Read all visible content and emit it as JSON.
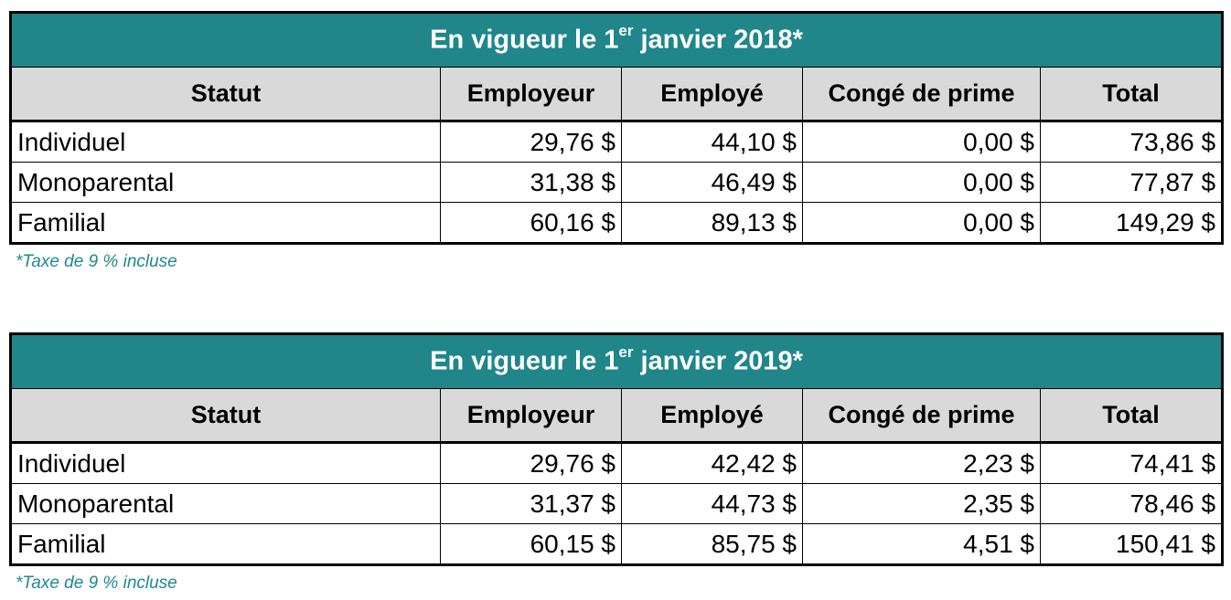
{
  "tables": [
    {
      "title_prefix": "En vigueur le 1",
      "title_sup": "er",
      "title_suffix": " janvier 2018*",
      "headers": [
        "Statut",
        "Employeur",
        "Employé",
        "Congé de prime",
        "Total"
      ],
      "rows": [
        {
          "statut": "Individuel",
          "employeur": "29,76 $",
          "employe": "44,10 $",
          "conge": "0,00 $",
          "total": "73,86 $"
        },
        {
          "statut": "Monoparental",
          "employeur": "31,38 $",
          "employe": "46,49 $",
          "conge": "0,00 $",
          "total": "77,87 $"
        },
        {
          "statut": "Familial",
          "employeur": "60,16 $",
          "employe": "89,13 $",
          "conge": "0,00 $",
          "total": "149,29 $"
        }
      ],
      "footnote": "*Taxe de 9 % incluse"
    },
    {
      "title_prefix": "En vigueur le 1",
      "title_sup": "er",
      "title_suffix": " janvier 2019*",
      "headers": [
        "Statut",
        "Employeur",
        "Employé",
        "Congé de prime",
        "Total"
      ],
      "rows": [
        {
          "statut": "Individuel",
          "employeur": "29,76 $",
          "employe": "42,42 $",
          "conge": "2,23 $",
          "total": "74,41 $"
        },
        {
          "statut": "Monoparental",
          "employeur": "31,37 $",
          "employe": "44,73 $",
          "conge": "2,35 $",
          "total": "78,46 $"
        },
        {
          "statut": "Familial",
          "employeur": "60,15 $",
          "employe": "85,75 $",
          "conge": "4,51 $",
          "total": "150,41 $"
        }
      ],
      "footnote": "*Taxe de 9 % incluse"
    }
  ],
  "colors": {
    "title_bg": "#20868a",
    "header_bg": "#d9d9d9",
    "footnote": "#1f8a8c"
  }
}
